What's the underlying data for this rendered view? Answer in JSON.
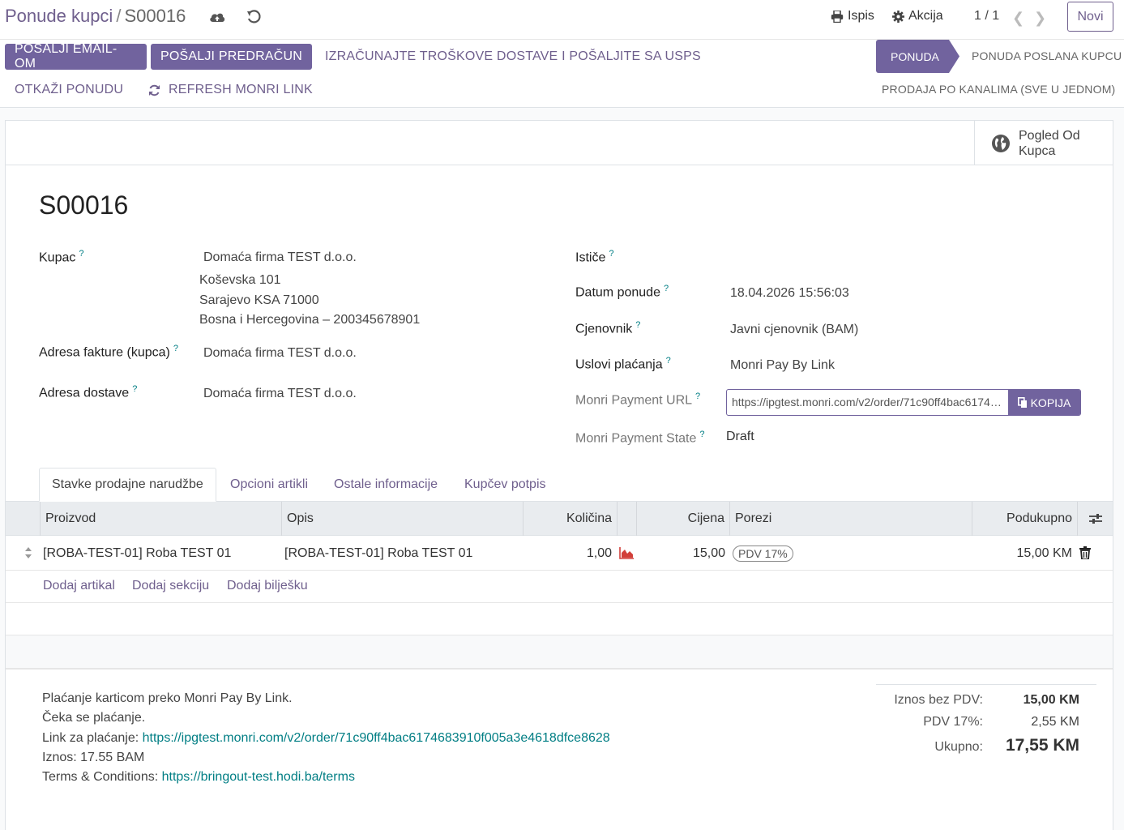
{
  "breadcrumb": {
    "parent": "Ponude kupci",
    "separator": "/",
    "current": "S00016"
  },
  "toolbar": {
    "print_label": "Ispis",
    "action_label": "Akcija",
    "pager": "1 / 1",
    "new_label": "Novi"
  },
  "action_buttons": {
    "send_email": "POŠALJI EMAIL-OM",
    "send_proforma": "POŠALJI PREDRAČUN",
    "usps": "IZRAČUNAJTE TROŠKOVE DOSTAVE I POŠALJITE SA USPS",
    "cancel": "OTKAŽI PONUDU",
    "refresh": "REFRESH MONRI LINK"
  },
  "statusbar": {
    "active": "PONUDA",
    "sent": "PONUDA POSLANA KUPCU",
    "sales": "PRODAJA PO KANALIMA (SVE U JEDNOM)"
  },
  "smart_button": {
    "line1": "Pogled Od",
    "line2": "Kupca"
  },
  "record": {
    "name": "S00016",
    "customer_label": "Kupac",
    "customer_name": "Domaća firma TEST d.o.o.",
    "customer_address1": "Koševska 101",
    "customer_address2": "Sarajevo KSA 71000",
    "customer_address3": "Bosna i Hercegovina – 200345678901",
    "invoice_address_label": "Adresa fakture (kupca)",
    "invoice_address": "Domaća firma TEST d.o.o.",
    "delivery_address_label": "Adresa dostave",
    "delivery_address": "Domaća firma TEST d.o.o.",
    "expires_label": "Ističe",
    "date_label": "Datum ponude",
    "date_value": "18.04.2026 15:56:03",
    "pricelist_label": "Cjenovnik",
    "pricelist_value": "Javni cjenovnik (BAM)",
    "terms_label": "Uslovi plaćanja",
    "terms_value": "Monri Pay By Link",
    "monri_url_label": "Monri Payment URL",
    "monri_url_value": "https://ipgtest.monri.com/v2/order/71c90ff4bac6174683910f005a3e4618dfce8628",
    "copy_label": "KOPIJA",
    "monri_state_label": "Monri Payment State",
    "monri_state_value": "Draft",
    "help_mark": "?"
  },
  "tabs": [
    "Stavke prodajne narudžbe",
    "Opcioni artikli",
    "Ostale informacije",
    "Kupčev potpis"
  ],
  "table": {
    "headers": {
      "product": "Proizvod",
      "description": "Opis",
      "qty": "Količina",
      "price": "Cijena",
      "taxes": "Porezi",
      "subtotal": "Podukupno"
    },
    "rows": [
      {
        "product": "[ROBA-TEST-01] Roba TEST 01",
        "description": "[ROBA-TEST-01] Roba TEST 01",
        "qty": "1,00",
        "price": "15,00",
        "tax": "PDV 17%",
        "subtotal": "15,00 KM"
      }
    ],
    "add_product": "Dodaj artikal",
    "add_section": "Dodaj sekciju",
    "add_note": "Dodaj bilješku"
  },
  "note": {
    "line1": "Plaćanje karticom preko Monri Pay By Link.",
    "line2": "Čeka se plaćanje.",
    "line3_prefix": "Link za plaćanje: ",
    "line3_link": "https://ipgtest.monri.com/v2/order/71c90ff4bac6174683910f005a3e4618dfce8628",
    "line4": "Iznos: 17.55 BAM",
    "line5_prefix": "Terms & Conditions: ",
    "line5_link": "https://bringout-test.hodi.ba/terms"
  },
  "totals": {
    "untaxed_label": "Iznos bez PDV:",
    "untaxed_value": "15,00 KM",
    "tax_label": "PDV 17%:",
    "tax_value": "2,55 KM",
    "total_label": "Ukupno:",
    "total_value": "17,55 KM"
  },
  "colors": {
    "primary": "#71639e",
    "link": "#017e84"
  }
}
